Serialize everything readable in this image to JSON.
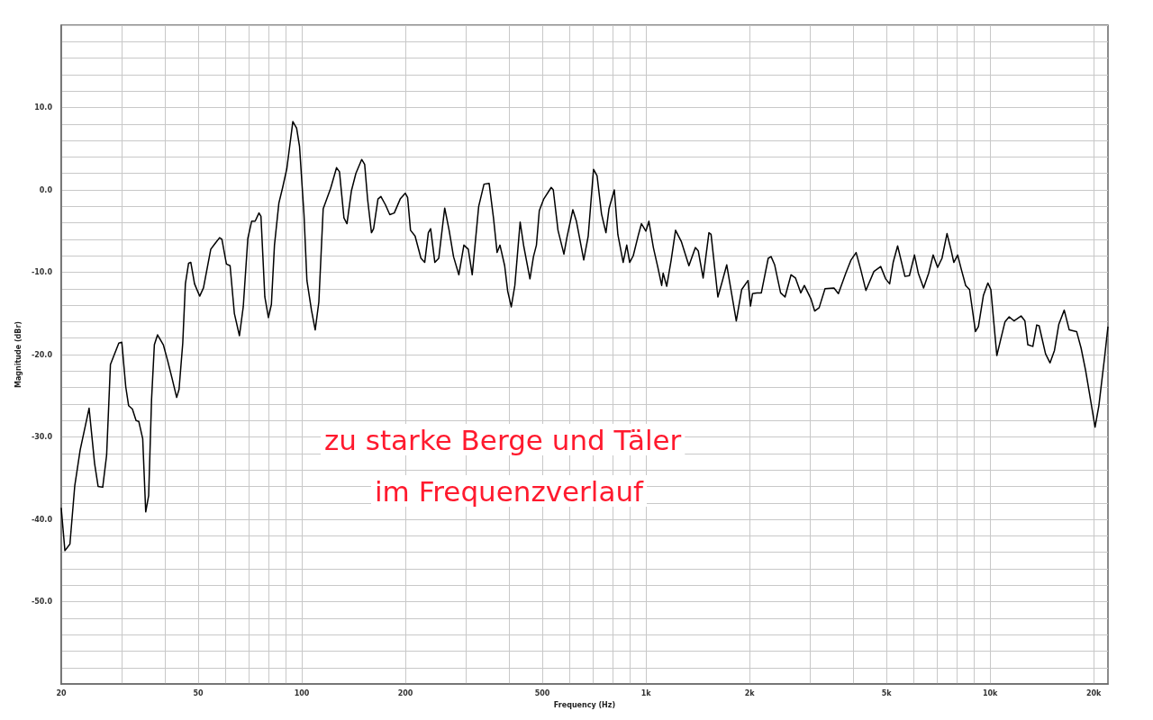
{
  "chart_data": {
    "type": "line",
    "xlabel": "Frequency (Hz)",
    "ylabel": "Magnitude (dBr)",
    "annotations": [
      "zu starke Berge und Täler",
      "im Frequenzverlauf"
    ],
    "log": "x",
    "grid": true,
    "color": "#000000",
    "xlim": [
      20,
      22000
    ],
    "ylim": [
      -60,
      20
    ],
    "xticks": [
      {
        "value": 20,
        "label": "20"
      },
      {
        "value": 30,
        "label": null
      },
      {
        "value": 40,
        "label": null
      },
      {
        "value": 50,
        "label": "50"
      },
      {
        "value": 60,
        "label": null
      },
      {
        "value": 70,
        "label": null
      },
      {
        "value": 80,
        "label": null
      },
      {
        "value": 90,
        "label": null
      },
      {
        "value": 100,
        "label": "100"
      },
      {
        "value": 200,
        "label": "200"
      },
      {
        "value": 300,
        "label": null
      },
      {
        "value": 400,
        "label": null
      },
      {
        "value": 500,
        "label": "500"
      },
      {
        "value": 600,
        "label": null
      },
      {
        "value": 700,
        "label": null
      },
      {
        "value": 800,
        "label": null
      },
      {
        "value": 900,
        "label": null
      },
      {
        "value": 1000,
        "label": "1k"
      },
      {
        "value": 2000,
        "label": "2k"
      },
      {
        "value": 3000,
        "label": null
      },
      {
        "value": 4000,
        "label": null
      },
      {
        "value": 5000,
        "label": "5k"
      },
      {
        "value": 6000,
        "label": null
      },
      {
        "value": 7000,
        "label": null
      },
      {
        "value": 8000,
        "label": null
      },
      {
        "value": 9000,
        "label": null
      },
      {
        "value": 10000,
        "label": "10k"
      },
      {
        "value": 20000,
        "label": "20k"
      }
    ],
    "yticks": [
      {
        "value": -60,
        "label": null
      },
      {
        "value": -58,
        "label": null
      },
      {
        "value": -56,
        "label": null
      },
      {
        "value": -54,
        "label": null
      },
      {
        "value": -52,
        "label": null
      },
      {
        "value": -50,
        "label": "-50.0"
      },
      {
        "value": -48,
        "label": null
      },
      {
        "value": -46,
        "label": null
      },
      {
        "value": -44,
        "label": null
      },
      {
        "value": -42,
        "label": null
      },
      {
        "value": -40,
        "label": "-40.0"
      },
      {
        "value": -38,
        "label": null
      },
      {
        "value": -36,
        "label": null
      },
      {
        "value": -34,
        "label": null
      },
      {
        "value": -32,
        "label": null
      },
      {
        "value": -30,
        "label": "-30.0"
      },
      {
        "value": -28,
        "label": null
      },
      {
        "value": -26,
        "label": null
      },
      {
        "value": -24,
        "label": null
      },
      {
        "value": -22,
        "label": null
      },
      {
        "value": -20,
        "label": "-20.0"
      },
      {
        "value": -18,
        "label": null
      },
      {
        "value": -16,
        "label": null
      },
      {
        "value": -14,
        "label": null
      },
      {
        "value": -12,
        "label": null
      },
      {
        "value": -10,
        "label": "-10.0"
      },
      {
        "value": -8,
        "label": null
      },
      {
        "value": -6,
        "label": null
      },
      {
        "value": -4,
        "label": null
      },
      {
        "value": -2,
        "label": null
      },
      {
        "value": 0,
        "label": "0.0"
      },
      {
        "value": 2,
        "label": null
      },
      {
        "value": 4,
        "label": null
      },
      {
        "value": 6,
        "label": null
      },
      {
        "value": 8,
        "label": null
      },
      {
        "value": 10,
        "label": "10.0"
      },
      {
        "value": 12,
        "label": null
      },
      {
        "value": 14,
        "label": null
      },
      {
        "value": 16,
        "label": null
      },
      {
        "value": 18,
        "label": null
      },
      {
        "value": 20,
        "label": null
      }
    ],
    "x": [
      20,
      20.5,
      21.2,
      21.9,
      22.7,
      24.1,
      25.0,
      25.6,
      26.4,
      27.1,
      27.8,
      29.4,
      30.0,
      30.8,
      31.4,
      32.2,
      33.0,
      33.6,
      34.5,
      35.2,
      35.9,
      36.6,
      37.3,
      38.1,
      39.6,
      40.8,
      42.0,
      43.3,
      44.0,
      45.1,
      45.9,
      46.9,
      47.6,
      48.8,
      50.5,
      51.8,
      54.4,
      56.0,
      57.7,
      58.6,
      60.4,
      61.9,
      63.7,
      65.9,
      67.6,
      69.7,
      71.5,
      73.2,
      75.1,
      76.1,
      78.1,
      80.0,
      81.6,
      83.3,
      85.8,
      88.0,
      90.5,
      94.2,
      96.6,
      98.5,
      101.5,
      103.5,
      106.7,
      109.4,
      112.1,
      115.4,
      121.3,
      126.2,
      128.7,
      132.6,
      135.3,
      139.4,
      143.6,
      149.3,
      152.3,
      155.4,
      159.4,
      161.7,
      166.5,
      169.8,
      175.0,
      180.2,
      185.7,
      193.2,
      199.8,
      203.0,
      207.0,
      213.4,
      222.0,
      227.6,
      233.2,
      236.8,
      243.6,
      250.0,
      260.2,
      268.0,
      276.0,
      286.0,
      295.8,
      304.6,
      312.8,
      326.6,
      338.4,
      350.2,
      360.6,
      369.4,
      376.6,
      388.6,
      396.6,
      406.2,
      416.0,
      431.0,
      441.4,
      460.2,
      471.2,
      480.6,
      490.0,
      504.8,
      530.6,
      538.0,
      555.2,
      577.6,
      589.2,
      613.2,
      628.0,
      659.6,
      679.6,
      704.2,
      721.2,
      742.8,
      765.2,
      780.8,
      809.2,
      828.6,
      858.6,
      879.4,
      896.8,
      918.4,
      951.6,
      970.4,
      999.6,
      1020,
      1051,
      1083,
      1111,
      1122,
      1149,
      1184,
      1219,
      1268,
      1333,
      1392,
      1419,
      1466,
      1524,
      1546,
      1618,
      1664,
      1717,
      1766,
      1830,
      1897,
      1980,
      2012,
      2040,
      2102,
      2164,
      2266,
      2310,
      2366,
      2462,
      2536,
      2640,
      2720,
      2818,
      2886,
      3014,
      3092,
      3186,
      3314,
      3518,
      3624,
      3808,
      3944,
      4080,
      4204,
      4356,
      4596,
      4810,
      4972,
      5106,
      5228,
      5386,
      5656,
      5828,
      6028,
      6184,
      6408,
      6630,
      6830,
      7036,
      7248,
      7494,
      7692,
      7844,
      8048,
      8242,
      8492,
      8716,
      9066,
      9248,
      9562,
      9850,
      10050,
      10460,
      10770,
      11050,
      11360,
      11730,
      12300,
      12620,
      12870,
      13310,
      13660,
      13880,
      14490,
      14930,
      15380,
      15840,
      16420,
      16980,
      17840,
      18380,
      18940,
      19510,
      20180,
      20700,
      21540,
      22000
    ],
    "values": [
      -38.6,
      -43.8,
      -43.0,
      -35.9,
      -31.6,
      -26.5,
      -33.2,
      -36.0,
      -36.1,
      -32.2,
      -21.2,
      -18.6,
      -18.5,
      -23.9,
      -26.2,
      -26.6,
      -28.0,
      -28.1,
      -30.2,
      -39.1,
      -37.1,
      -25.5,
      -18.8,
      -17.6,
      -18.8,
      -20.8,
      -22.9,
      -25.2,
      -24.2,
      -18.6,
      -11.4,
      -8.9,
      -8.8,
      -11.4,
      -12.9,
      -11.9,
      -7.2,
      -6.5,
      -5.8,
      -6.0,
      -9.0,
      -9.2,
      -15.0,
      -17.7,
      -14.2,
      -5.9,
      -3.8,
      -3.8,
      -2.8,
      -3.2,
      -13.0,
      -15.5,
      -13.9,
      -6.7,
      -1.6,
      0.3,
      2.6,
      8.3,
      7.5,
      5.3,
      -3.0,
      -11.0,
      -14.6,
      -17.0,
      -13.6,
      -2.3,
      0.2,
      2.7,
      2.2,
      -3.4,
      -4.1,
      -0.1,
      2.0,
      3.7,
      3.1,
      -1.2,
      -5.2,
      -4.7,
      -1.1,
      -0.8,
      -1.8,
      -3.0,
      -2.8,
      -1.1,
      -0.4,
      -0.9,
      -4.9,
      -5.6,
      -8.3,
      -8.8,
      -5.2,
      -4.7,
      -8.8,
      -8.3,
      -2.2,
      -4.9,
      -8.1,
      -10.3,
      -6.7,
      -7.2,
      -10.3,
      -2.0,
      0.7,
      0.8,
      -3.4,
      -7.6,
      -6.7,
      -9.2,
      -12.3,
      -14.2,
      -11.6,
      -3.9,
      -6.8,
      -10.8,
      -8.1,
      -6.7,
      -2.5,
      -1.1,
      0.3,
      0.0,
      -4.9,
      -7.8,
      -5.8,
      -2.4,
      -3.8,
      -8.5,
      -5.6,
      2.5,
      1.7,
      -2.9,
      -5.2,
      -2.3,
      0.0,
      -5.4,
      -8.8,
      -6.7,
      -8.8,
      -8.0,
      -5.4,
      -4.1,
      -5.0,
      -3.8,
      -7.0,
      -9.4,
      -11.6,
      -10.1,
      -11.7,
      -8.5,
      -4.9,
      -6.3,
      -9.2,
      -7.0,
      -7.4,
      -10.7,
      -5.2,
      -5.4,
      -13.0,
      -11.2,
      -9.1,
      -12.1,
      -15.9,
      -12.1,
      -11.0,
      -14.1,
      -12.6,
      -12.5,
      -12.5,
      -8.3,
      -8.1,
      -9.1,
      -12.5,
      -13.0,
      -10.3,
      -10.7,
      -12.5,
      -11.6,
      -13.2,
      -14.7,
      -14.3,
      -12.0,
      -11.9,
      -12.6,
      -10.1,
      -8.5,
      -7.6,
      -9.6,
      -12.2,
      -9.9,
      -9.3,
      -10.8,
      -11.4,
      -8.8,
      -6.8,
      -10.5,
      -10.4,
      -7.9,
      -10.1,
      -11.9,
      -10.1,
      -7.9,
      -9.4,
      -8.3,
      -5.3,
      -7.2,
      -8.8,
      -7.9,
      -9.6,
      -11.6,
      -12.1,
      -17.2,
      -16.6,
      -12.8,
      -11.3,
      -12.1,
      -20.1,
      -17.9,
      -16.0,
      -15.4,
      -15.9,
      -15.3,
      -15.9,
      -18.8,
      -19.0,
      -16.4,
      -16.5,
      -19.9,
      -21.0,
      -19.5,
      -16.3,
      -14.6,
      -17.0,
      -17.2,
      -19.2,
      -21.9,
      -25.1,
      -28.8,
      -26.2,
      -20.1,
      -16.6
    ]
  }
}
